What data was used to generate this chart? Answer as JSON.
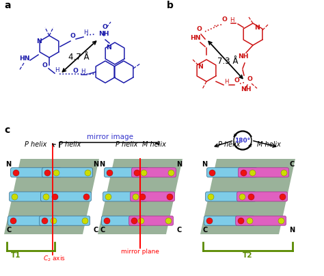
{
  "panel_a_label": "a",
  "panel_b_label": "b",
  "panel_c_label": "c",
  "color_blue": "#1a1aaa",
  "color_red": "#cc1111",
  "color_green": "#5a8a00",
  "color_blue_text": "#3333cc",
  "color_red_text": "#cc1111",
  "mirror_image_text": "mirror image",
  "degree_180": "180°",
  "c2_axis": "$C_2$ axis",
  "mirror_plane": "mirror plane",
  "T1": "T1",
  "T2": "T2",
  "dist_a": "4.7 Å",
  "dist_b": "7.3 Å",
  "P_helix": "P helix",
  "M_helix": "M helix",
  "bg_color": "#ffffff",
  "cyan_rod": "#7ecce8",
  "magenta_rod": "#e060c0",
  "panel_bg": "#8faa8f",
  "ball_red": "#ee1111",
  "ball_yellow": "#ccdd00"
}
